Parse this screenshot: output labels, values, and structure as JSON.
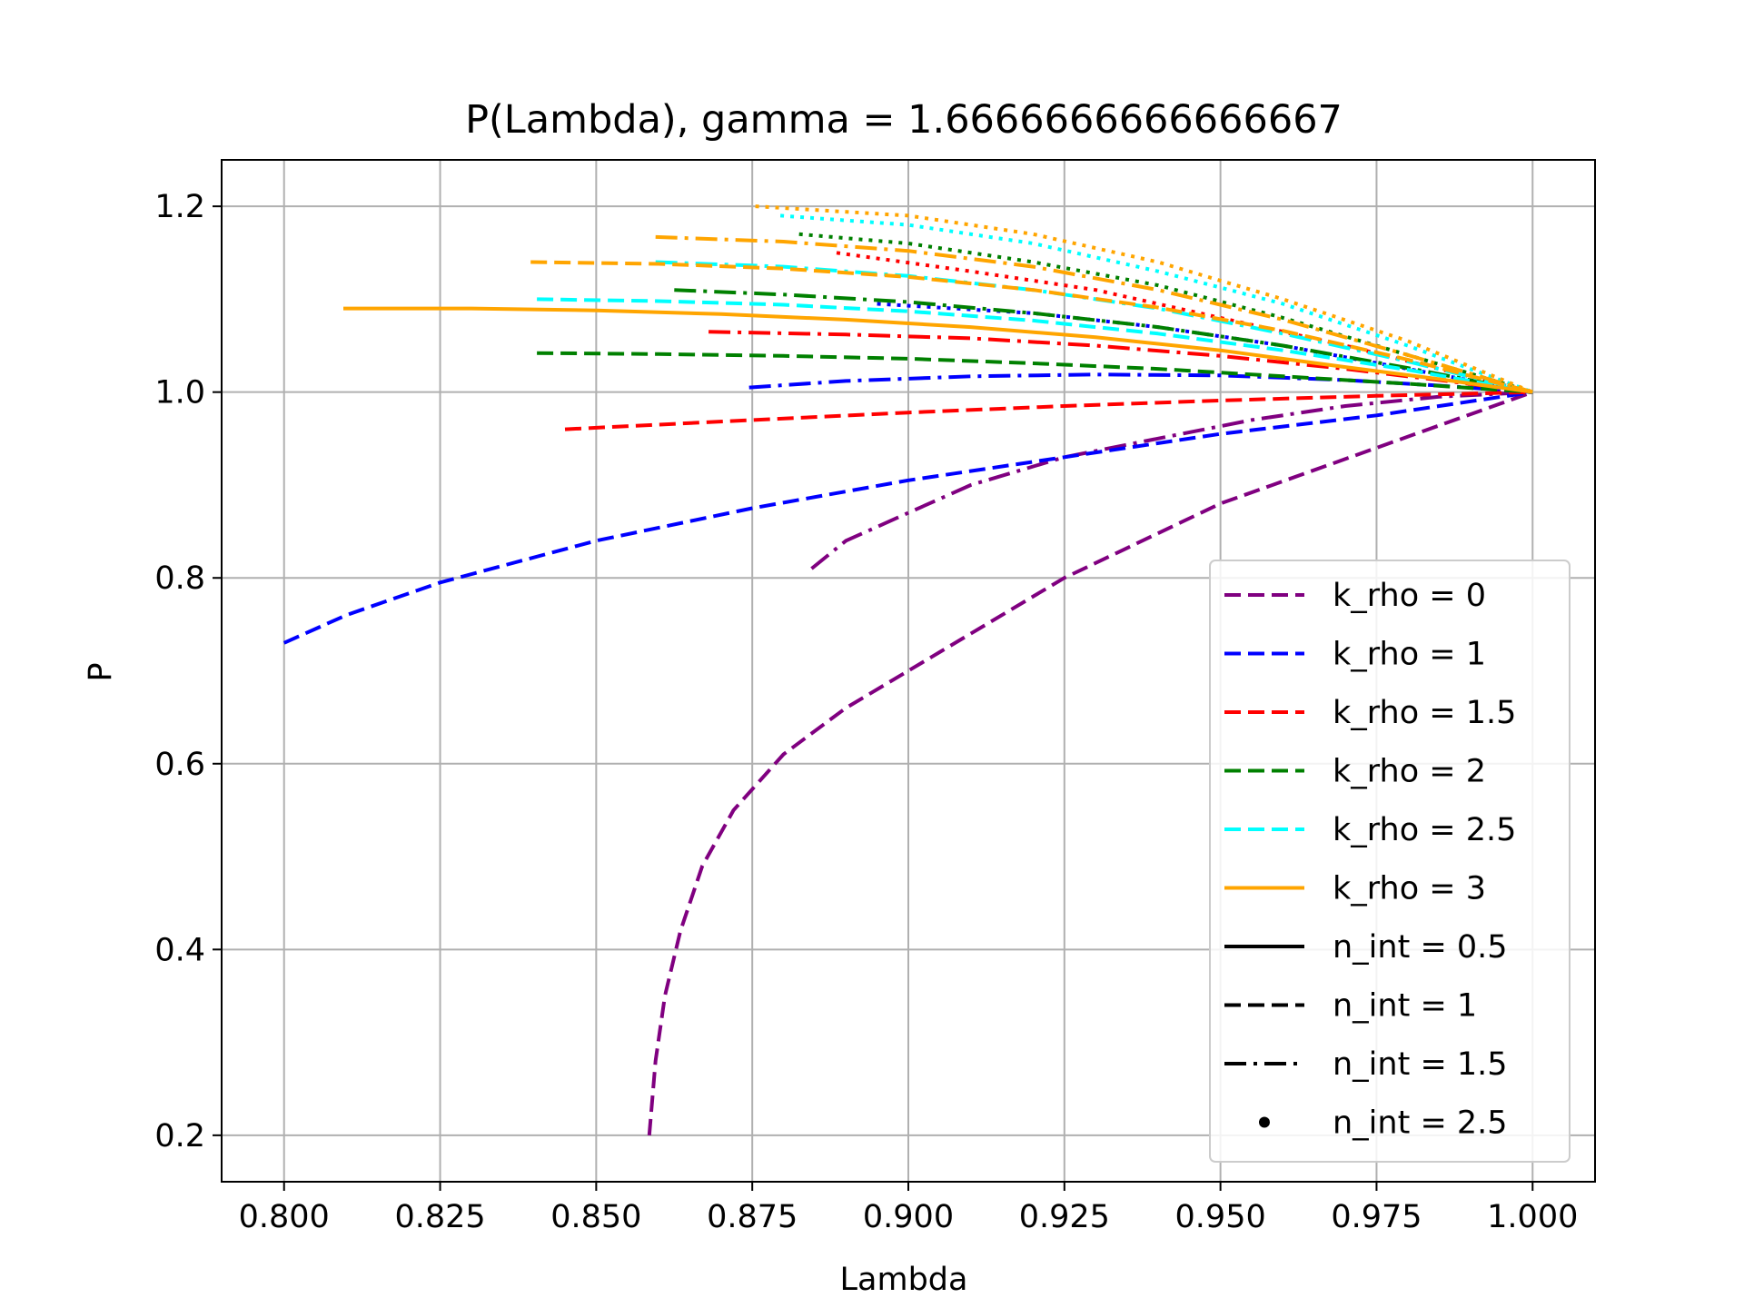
{
  "chart_data": {
    "type": "line",
    "title": "P(Lambda), gamma = 1.6666666666666667",
    "xlabel": "Lambda",
    "ylabel": "P",
    "xlim": [
      0.79,
      1.01
    ],
    "ylim": [
      0.15,
      1.25
    ],
    "xticks": [
      0.8,
      0.825,
      0.85,
      0.875,
      0.9,
      0.925,
      0.95,
      0.975,
      1.0
    ],
    "xtick_labels": [
      "0.800",
      "0.825",
      "0.850",
      "0.875",
      "0.900",
      "0.925",
      "0.950",
      "0.975",
      "1.000"
    ],
    "yticks": [
      0.2,
      0.4,
      0.6,
      0.8,
      1.0,
      1.2
    ],
    "ytick_labels": [
      "0.2",
      "0.4",
      "0.6",
      "0.8",
      "1.0",
      "1.2"
    ],
    "grid": true,
    "legend_position": "lower-right",
    "colors": {
      "k_rho_0": "#800080",
      "k_rho_1": "#0000ff",
      "k_rho_1.5": "#ff0000",
      "k_rho_2": "#008000",
      "k_rho_2.5": "#00ffff",
      "k_rho_3": "#ffa500",
      "n_int": "#000000"
    },
    "legend": [
      {
        "label": "k_rho = 0",
        "color": "#800080",
        "style": "dashed"
      },
      {
        "label": "k_rho = 1",
        "color": "#0000ff",
        "style": "dashed"
      },
      {
        "label": "k_rho = 1.5",
        "color": "#ff0000",
        "style": "dashed"
      },
      {
        "label": "k_rho = 2",
        "color": "#008000",
        "style": "dashed"
      },
      {
        "label": "k_rho = 2.5",
        "color": "#00ffff",
        "style": "dashed"
      },
      {
        "label": "k_rho = 3",
        "color": "#ffa500",
        "style": "solid"
      },
      {
        "label": "n_int = 0.5",
        "color": "#000000",
        "style": "solid"
      },
      {
        "label": "n_int = 1",
        "color": "#000000",
        "style": "dashed"
      },
      {
        "label": "n_int = 1.5",
        "color": "#000000",
        "style": "dashdot"
      },
      {
        "label": "n_int = 2.5",
        "color": "#000000",
        "style": "point"
      }
    ],
    "series": [
      {
        "color": "#800080",
        "style": "dashed",
        "x": [
          0.8585,
          0.8595,
          0.861,
          0.8635,
          0.867,
          0.872,
          0.88,
          0.89,
          0.905,
          0.925,
          0.95,
          0.975,
          1.0
        ],
        "y": [
          0.2,
          0.28,
          0.35,
          0.42,
          0.49,
          0.55,
          0.61,
          0.66,
          0.72,
          0.8,
          0.88,
          0.94,
          1.0
        ]
      },
      {
        "color": "#800080",
        "style": "dashdot",
        "x": [
          0.8845,
          0.89,
          0.9,
          0.91,
          0.925,
          0.94,
          0.955,
          0.97,
          0.985,
          1.0
        ],
        "y": [
          0.81,
          0.84,
          0.87,
          0.9,
          0.93,
          0.95,
          0.97,
          0.985,
          0.995,
          1.0
        ]
      },
      {
        "color": "#0000ff",
        "style": "dashed",
        "x": [
          0.8,
          0.81,
          0.825,
          0.85,
          0.875,
          0.9,
          0.925,
          0.95,
          0.975,
          1.0
        ],
        "y": [
          0.73,
          0.76,
          0.795,
          0.84,
          0.875,
          0.905,
          0.93,
          0.955,
          0.975,
          1.0
        ]
      },
      {
        "color": "#0000ff",
        "style": "dashdot",
        "x": [
          0.8745,
          0.89,
          0.91,
          0.93,
          0.95,
          0.97,
          0.985,
          1.0
        ],
        "y": [
          1.005,
          1.012,
          1.017,
          1.019,
          1.018,
          1.013,
          1.007,
          1.0
        ]
      },
      {
        "color": "#0000ff",
        "style": "dotted",
        "x": [
          0.895,
          0.92,
          0.94,
          0.96,
          0.98,
          1.0
        ],
        "y": [
          1.095,
          1.085,
          1.07,
          1.05,
          1.025,
          1.0
        ]
      },
      {
        "color": "#ff0000",
        "style": "dashed",
        "x": [
          0.845,
          0.875,
          0.9,
          0.925,
          0.95,
          0.975,
          1.0
        ],
        "y": [
          0.96,
          0.97,
          0.978,
          0.985,
          0.991,
          0.996,
          1.0
        ]
      },
      {
        "color": "#ff0000",
        "style": "dashdot",
        "x": [
          0.868,
          0.89,
          0.91,
          0.93,
          0.95,
          0.97,
          0.985,
          1.0
        ],
        "y": [
          1.065,
          1.062,
          1.058,
          1.05,
          1.039,
          1.025,
          1.013,
          1.0
        ]
      },
      {
        "color": "#ff0000",
        "style": "dotted",
        "x": [
          0.8885,
          0.91,
          0.93,
          0.95,
          0.97,
          0.985,
          1.0
        ],
        "y": [
          1.15,
          1.13,
          1.11,
          1.08,
          1.05,
          1.025,
          1.0
        ]
      },
      {
        "color": "#008000",
        "style": "dashed",
        "x": [
          0.8405,
          0.86,
          0.88,
          0.9,
          0.92,
          0.94,
          0.96,
          0.98,
          1.0
        ],
        "y": [
          1.042,
          1.041,
          1.039,
          1.036,
          1.031,
          1.025,
          1.017,
          1.009,
          1.0
        ]
      },
      {
        "color": "#008000",
        "style": "dashdot",
        "x": [
          0.8625,
          0.88,
          0.9,
          0.92,
          0.94,
          0.96,
          0.98,
          1.0
        ],
        "y": [
          1.11,
          1.105,
          1.097,
          1.085,
          1.07,
          1.05,
          1.026,
          1.0
        ]
      },
      {
        "color": "#008000",
        "style": "dotted",
        "x": [
          0.8825,
          0.9,
          0.92,
          0.94,
          0.96,
          0.98,
          1.0
        ],
        "y": [
          1.17,
          1.16,
          1.14,
          1.115,
          1.08,
          1.04,
          1.0
        ]
      },
      {
        "color": "#00ffff",
        "style": "dashed",
        "x": [
          0.8405,
          0.86,
          0.88,
          0.9,
          0.92,
          0.94,
          0.96,
          0.98,
          1.0
        ],
        "y": [
          1.1,
          1.098,
          1.094,
          1.087,
          1.077,
          1.063,
          1.045,
          1.024,
          1.0
        ]
      },
      {
        "color": "#00ffff",
        "style": "dashdot",
        "x": [
          0.8595,
          0.88,
          0.9,
          0.92,
          0.94,
          0.96,
          0.98,
          1.0
        ],
        "y": [
          1.14,
          1.135,
          1.125,
          1.11,
          1.09,
          1.063,
          1.033,
          1.0
        ]
      },
      {
        "color": "#00ffff",
        "style": "dotted",
        "x": [
          0.8795,
          0.9,
          0.92,
          0.94,
          0.96,
          0.98,
          1.0
        ],
        "y": [
          1.19,
          1.18,
          1.16,
          1.13,
          1.095,
          1.05,
          1.0
        ]
      },
      {
        "color": "#ffa500",
        "style": "solid",
        "x": [
          0.8095,
          0.83,
          0.85,
          0.87,
          0.89,
          0.91,
          0.93,
          0.95,
          0.97,
          0.985,
          1.0
        ],
        "y": [
          1.09,
          1.09,
          1.088,
          1.084,
          1.078,
          1.07,
          1.059,
          1.045,
          1.027,
          1.014,
          1.0
        ]
      },
      {
        "color": "#ffa500",
        "style": "dashed",
        "x": [
          0.8395,
          0.86,
          0.88,
          0.9,
          0.92,
          0.94,
          0.96,
          0.98,
          1.0
        ],
        "y": [
          1.14,
          1.138,
          1.133,
          1.124,
          1.11,
          1.091,
          1.066,
          1.035,
          1.0
        ]
      },
      {
        "color": "#ffa500",
        "style": "dashdot",
        "x": [
          0.8595,
          0.88,
          0.9,
          0.92,
          0.94,
          0.96,
          0.98,
          1.0
        ],
        "y": [
          1.167,
          1.162,
          1.152,
          1.135,
          1.11,
          1.078,
          1.04,
          1.0
        ]
      },
      {
        "color": "#ffa500",
        "style": "dotted",
        "x": [
          0.8755,
          0.9,
          0.92,
          0.94,
          0.96,
          0.98,
          1.0
        ],
        "y": [
          1.2,
          1.19,
          1.17,
          1.14,
          1.1,
          1.055,
          1.0
        ]
      }
    ]
  }
}
